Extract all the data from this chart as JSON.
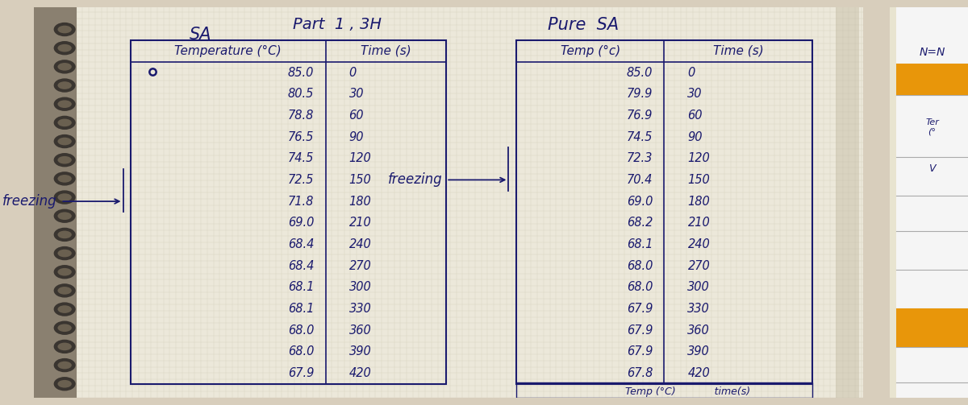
{
  "title_top": "Part  1 , 3H",
  "sa_title": "SA",
  "pure_sa_title": "Pure  SA",
  "sa_col1_header": "Temperature (°C)",
  "sa_col2_header": "Time (s)",
  "pure_col1_header": "Temp (°c)",
  "pure_col2_header": "Time (s)",
  "sa_temp": [
    "85.0",
    "80.5",
    "78.8",
    "76.5",
    "74.5",
    "72.5",
    "71.8",
    "69.0",
    "68.4",
    "68.4",
    "68.1",
    "68.1",
    "68.0",
    "68.0",
    "67.9"
  ],
  "sa_time": [
    "0",
    "30",
    "60",
    "90",
    "120",
    "150",
    "180",
    "210",
    "240",
    "270",
    "300",
    "330",
    "360",
    "390",
    "420"
  ],
  "pure_temp": [
    "85.0",
    "79.9",
    "76.9",
    "74.5",
    "72.3",
    "70.4",
    "69.0",
    "68.2",
    "68.1",
    "68.0",
    "68.0",
    "67.9",
    "67.9",
    "67.9",
    "67.8"
  ],
  "pure_time": [
    "0",
    "30",
    "60",
    "90",
    "120",
    "150",
    "180",
    "210",
    "240",
    "270",
    "300",
    "330",
    "360",
    "390",
    "420"
  ],
  "sa_freezing_row": 6,
  "pure_freezing_row": 5,
  "bg_color": "#d8cebc",
  "paper_color": "#ece8da",
  "line_color": "#1a1a6e",
  "grid_color": "#bab5a0",
  "text_color": "#1a1a6e",
  "freezing_label": "freezing",
  "right_panel_bg": "#e8e4d0",
  "orange_color": "#e8960a",
  "white_panel": "#f5f5f5"
}
